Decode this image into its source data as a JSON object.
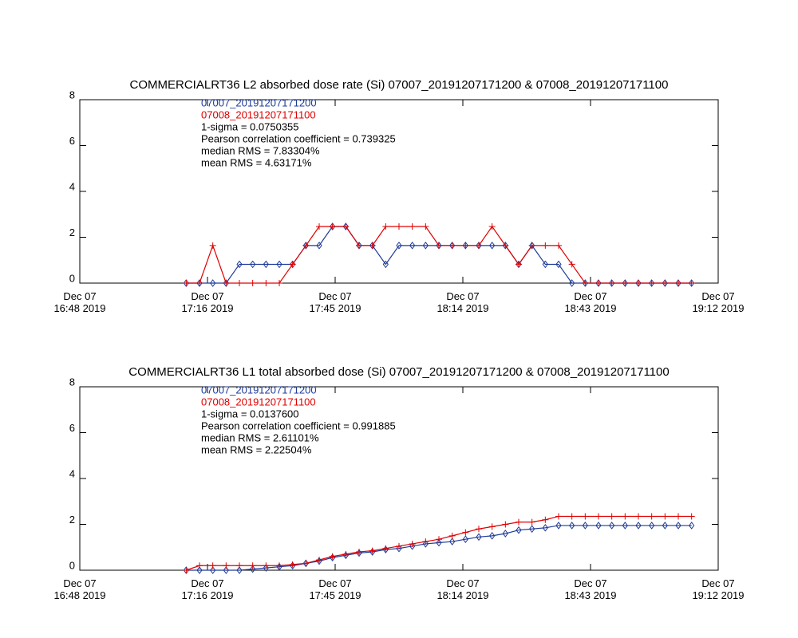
{
  "chart_data": [
    {
      "type": "line",
      "title": "COMMERCIALRT36 L2 absorbed dose rate (Si) 07007_20191207171200 & 07008_20191207171100",
      "annotations": [
        "1-sigma = 0.0750355",
        "Pearson correlation coefficient = 0.739325",
        "median RMS = 7.83304%",
        "mean RMS = 4.63171%"
      ],
      "x": [
        "17:12",
        "17:15",
        "17:18",
        "17:21",
        "17:24",
        "17:27",
        "17:30",
        "17:33",
        "17:36",
        "17:39",
        "17:42",
        "17:45",
        "17:48",
        "17:51",
        "17:54",
        "17:57",
        "18:00",
        "18:03",
        "18:06",
        "18:09",
        "18:12",
        "18:15",
        "18:18",
        "18:21",
        "18:24",
        "18:27",
        "18:30",
        "18:33",
        "18:36",
        "18:39",
        "18:42",
        "18:45",
        "18:48",
        "18:51",
        "18:54",
        "18:57",
        "19:00",
        "19:03",
        "19:06"
      ],
      "series": [
        {
          "name": "07007_20191207171200",
          "color": "#1f3c99",
          "marker": "diamond",
          "values": [
            0,
            0,
            0,
            0,
            0.82,
            0.82,
            0.82,
            0.82,
            0.82,
            1.64,
            1.64,
            2.47,
            2.47,
            1.64,
            1.64,
            0.82,
            1.64,
            1.64,
            1.64,
            1.64,
            1.64,
            1.64,
            1.64,
            1.64,
            1.64,
            0.82,
            1.64,
            0.82,
            0.82,
            0,
            0,
            0,
            0,
            0,
            0,
            0,
            0,
            0,
            0
          ]
        },
        {
          "name": "07008_20191207171100",
          "color": "#e00000",
          "marker": "plus",
          "values": [
            0,
            0,
            1.64,
            0,
            0,
            0,
            0,
            0,
            0.82,
            1.64,
            2.47,
            2.47,
            2.47,
            1.64,
            1.64,
            2.47,
            2.47,
            2.47,
            2.47,
            1.64,
            1.64,
            1.64,
            1.64,
            2.47,
            1.64,
            0.82,
            1.64,
            1.64,
            1.64,
            0.82,
            0,
            0,
            0,
            0,
            0,
            0,
            0,
            0,
            0
          ]
        }
      ],
      "xlim": [
        "16:48",
        "19:12"
      ],
      "xticks": [
        {
          "value": "16:48",
          "label": "Dec 07\n16:48 2019"
        },
        {
          "value": "17:16:48",
          "label": "Dec 07\n17:16 2019"
        },
        {
          "value": "17:45:36",
          "label": "Dec 07\n17:45 2019"
        },
        {
          "value": "18:14:24",
          "label": "Dec 07\n18:14 2019"
        },
        {
          "value": "18:43:12",
          "label": "Dec 07\n18:43 2019"
        },
        {
          "value": "19:12",
          "label": "Dec 07\n19:12 2019"
        }
      ],
      "ylim": [
        0,
        8
      ],
      "yticks": [
        0,
        2,
        4,
        6,
        8
      ]
    },
    {
      "type": "line",
      "title": "COMMERCIALRT36 L1 total absorbed dose (Si) 07007_20191207171200 & 07008_20191207171100",
      "annotations": [
        "1-sigma = 0.0137600",
        "Pearson correlation coefficient = 0.991885",
        "median RMS = 2.61101%",
        "mean RMS = 2.22504%"
      ],
      "x": [
        "17:12",
        "17:15",
        "17:18",
        "17:21",
        "17:24",
        "17:27",
        "17:30",
        "17:33",
        "17:36",
        "17:39",
        "17:42",
        "17:45",
        "17:48",
        "17:51",
        "17:54",
        "17:57",
        "18:00",
        "18:03",
        "18:06",
        "18:09",
        "18:12",
        "18:15",
        "18:18",
        "18:21",
        "18:24",
        "18:27",
        "18:30",
        "18:33",
        "18:36",
        "18:39",
        "18:42",
        "18:45",
        "18:48",
        "18:51",
        "18:54",
        "18:57",
        "19:00",
        "19:03",
        "19:06"
      ],
      "series": [
        {
          "name": "07007_20191207171200",
          "color": "#1f3c99",
          "marker": "diamond",
          "values": [
            0,
            0,
            0,
            0,
            0,
            0.05,
            0.1,
            0.15,
            0.2,
            0.3,
            0.4,
            0.55,
            0.65,
            0.75,
            0.8,
            0.9,
            0.95,
            1.05,
            1.15,
            1.2,
            1.25,
            1.35,
            1.45,
            1.5,
            1.6,
            1.75,
            1.8,
            1.85,
            1.95,
            1.95,
            1.95,
            1.95,
            1.95,
            1.95,
            1.95,
            1.95,
            1.95,
            1.95,
            1.95
          ]
        },
        {
          "name": "07008_20191207171100",
          "color": "#e00000",
          "marker": "plus",
          "values": [
            0,
            0.2,
            0.2,
            0.2,
            0.2,
            0.2,
            0.2,
            0.2,
            0.25,
            0.3,
            0.45,
            0.6,
            0.7,
            0.8,
            0.85,
            0.95,
            1.05,
            1.15,
            1.25,
            1.35,
            1.5,
            1.65,
            1.8,
            1.9,
            2.0,
            2.1,
            2.1,
            2.2,
            2.35,
            2.35,
            2.35,
            2.35,
            2.35,
            2.35,
            2.35,
            2.35,
            2.35,
            2.35,
            2.35
          ]
        }
      ],
      "xlim": [
        "16:48",
        "19:12"
      ],
      "xticks": [
        {
          "value": "16:48",
          "label": "Dec 07\n16:48 2019"
        },
        {
          "value": "17:16:48",
          "label": "Dec 07\n17:16 2019"
        },
        {
          "value": "17:45:36",
          "label": "Dec 07\n17:45 2019"
        },
        {
          "value": "18:14:24",
          "label": "Dec 07\n18:14 2019"
        },
        {
          "value": "18:43:12",
          "label": "Dec 07\n18:43 2019"
        },
        {
          "value": "19:12",
          "label": "Dec 07\n19:12 2019"
        }
      ],
      "ylim": [
        0,
        8
      ],
      "yticks": [
        0,
        2,
        4,
        6,
        8
      ]
    }
  ]
}
